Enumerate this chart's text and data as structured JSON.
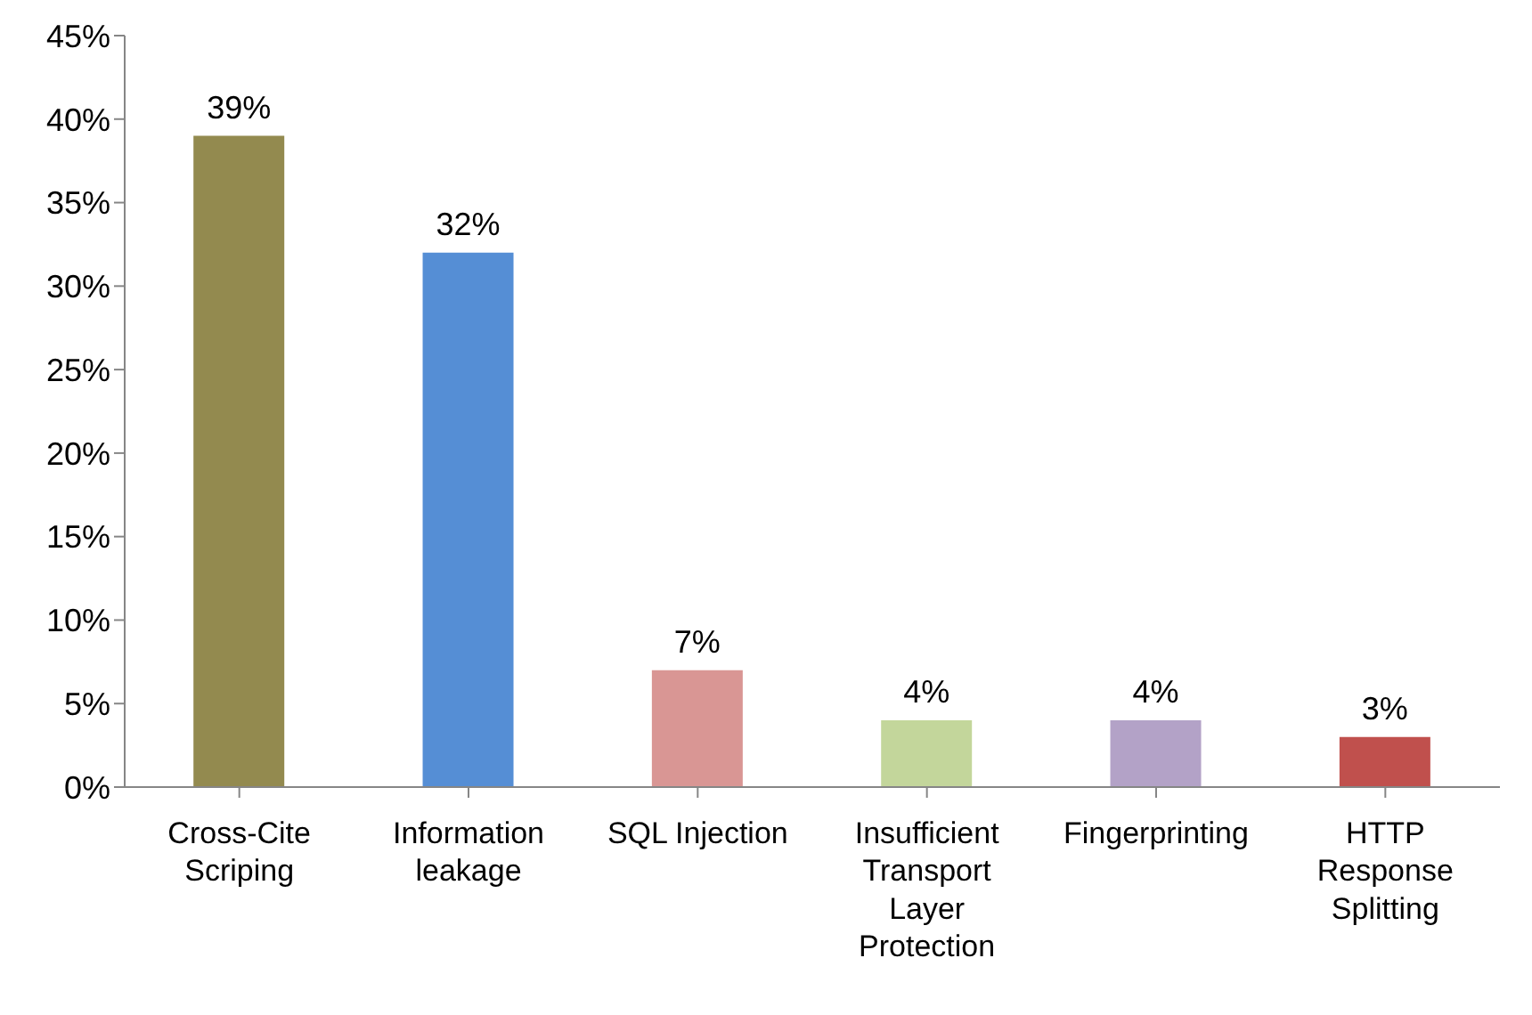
{
  "chart_data": {
    "type": "bar",
    "categories": [
      "Cross-Cite Scriping",
      "Information leakage",
      "SQL Injection",
      "Insufficient Transport Layer Protection",
      "Fingerprinting",
      "HTTP Response Splitting"
    ],
    "values": [
      39,
      32,
      7,
      4,
      4,
      3
    ],
    "colors": [
      "#938a4f",
      "#558ed5",
      "#d99694",
      "#c3d69b",
      "#b3a2c7",
      "#c0504d"
    ],
    "value_labels": [
      "39%",
      "32%",
      "7%",
      "4%",
      "4%",
      "3%"
    ],
    "ylim": [
      0,
      45
    ],
    "yticks": [
      {
        "value": 0,
        "label": "0%"
      },
      {
        "value": 5,
        "label": "5%"
      },
      {
        "value": 10,
        "label": "10%"
      },
      {
        "value": 15,
        "label": "15%"
      },
      {
        "value": 20,
        "label": "20%"
      },
      {
        "value": 25,
        "label": "25%"
      },
      {
        "value": 30,
        "label": "30%"
      },
      {
        "value": 35,
        "label": "35%"
      },
      {
        "value": 40,
        "label": "40%"
      },
      {
        "value": 45,
        "label": "45%"
      }
    ],
    "grid": false,
    "legend": false
  }
}
